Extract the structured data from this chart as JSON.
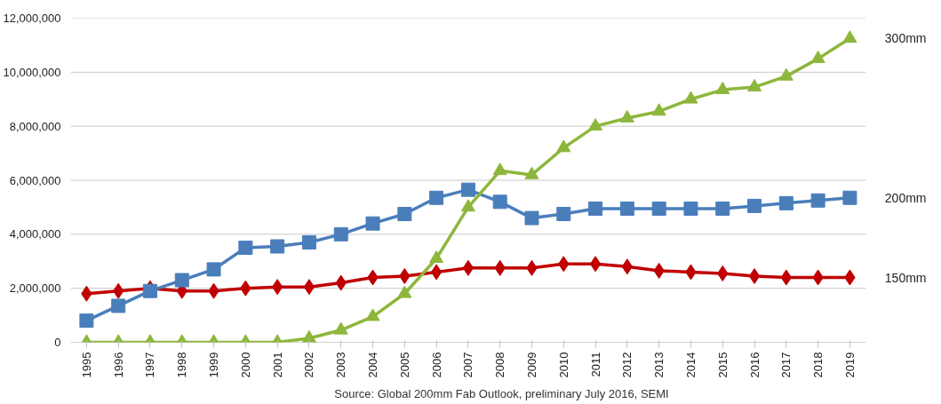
{
  "chart_data": {
    "type": "line",
    "categories": [
      "1995",
      "1996",
      "1997",
      "1998",
      "1999",
      "2000",
      "2001",
      "2002",
      "2003",
      "2004",
      "2005",
      "2006",
      "2007",
      "2008",
      "2009",
      "2010",
      "2011",
      "2012",
      "2013",
      "2014",
      "2015",
      "2016",
      "2017",
      "2018",
      "2019"
    ],
    "series": [
      {
        "name": "150mm",
        "color": "#c00000",
        "marker": "diamond",
        "values": [
          1800000,
          1900000,
          2000000,
          1900000,
          1900000,
          2000000,
          2050000,
          2050000,
          2200000,
          2400000,
          2450000,
          2600000,
          2750000,
          2750000,
          2750000,
          2900000,
          2900000,
          2800000,
          2650000,
          2600000,
          2550000,
          2450000,
          2400000,
          2400000,
          2400000
        ]
      },
      {
        "name": "200mm",
        "color": "#4a7ebb",
        "marker": "square",
        "values": [
          800000,
          1350000,
          1900000,
          2300000,
          2700000,
          3500000,
          3550000,
          3700000,
          4000000,
          4400000,
          4750000,
          5350000,
          5650000,
          5200000,
          4600000,
          4750000,
          4950000,
          4950000,
          4950000,
          4950000,
          4950000,
          5050000,
          5150000,
          5250000,
          5350000
        ]
      },
      {
        "name": "300mm",
        "color": "#8db63c",
        "marker": "triangle",
        "values": [
          0,
          0,
          0,
          0,
          0,
          0,
          0,
          150000,
          450000,
          950000,
          1800000,
          3100000,
          5000000,
          6350000,
          6200000,
          7200000,
          8000000,
          8300000,
          8550000,
          9000000,
          9350000,
          9450000,
          9850000,
          10500000,
          11250000
        ]
      }
    ],
    "ylim": [
      0,
      12000000
    ],
    "yticks": [
      0,
      {
        "value": 2000000,
        "label": "2,000,000"
      },
      {
        "value": 4000000,
        "label": "4,000,000"
      },
      {
        "value": 6000000,
        "label": "6,000,000"
      },
      {
        "value": 8000000,
        "label": "8,000,000"
      },
      {
        "value": 10000000,
        "label": "10,000,000"
      },
      {
        "value": 12000000,
        "label": "12,000,000"
      }
    ],
    "grid": "y",
    "annotations": [
      "Source: Global 200mm Fab Outlook, preliminary July 2016, SEMI"
    ]
  }
}
